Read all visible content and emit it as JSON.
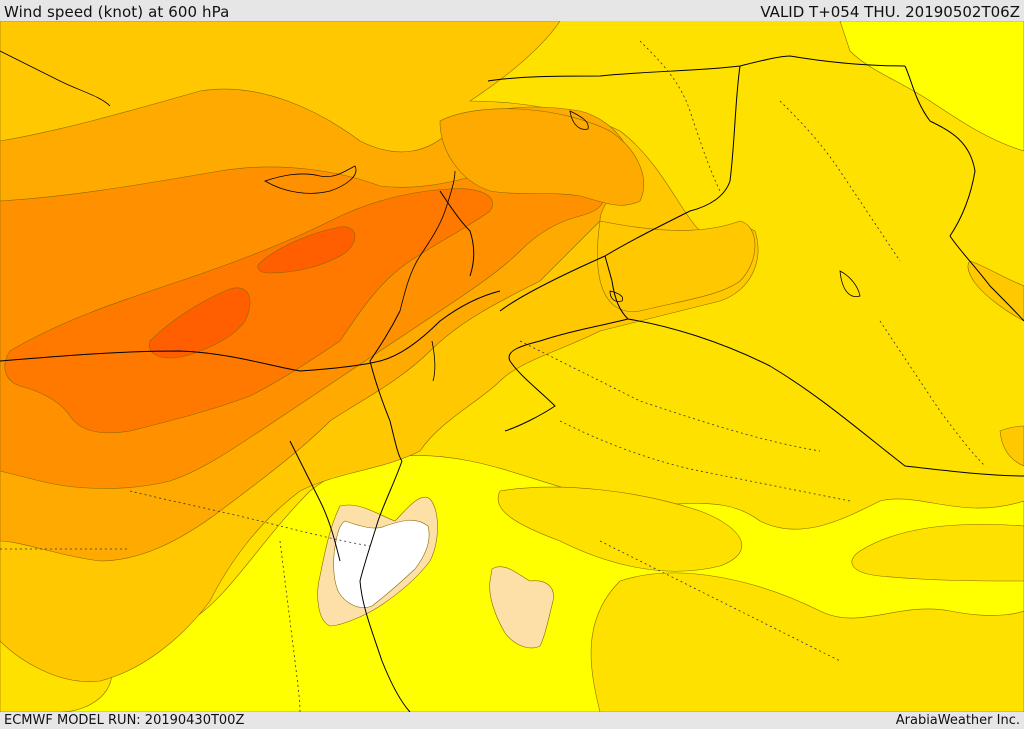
{
  "header": {
    "title": "Wind speed (knot) at 600 hPa",
    "valid": "VALID T+054 THU. 20190502T06Z"
  },
  "footer": {
    "model_run": "ECMWF MODEL RUN: 20190430T00Z",
    "credit": "ArabiaWeather Inc."
  },
  "palette": {
    "lightest": "#ffff00",
    "light": "#ffe100",
    "medium": "#ffc800",
    "strong": "#ffaa00",
    "stronger": "#ff9100",
    "very_strong": "#ff7800",
    "max": "#ff5f00",
    "calm_pale": "#fde0a8",
    "calm_white": "#ffffff",
    "contour": "#8a6a00",
    "border": "#000000"
  }
}
